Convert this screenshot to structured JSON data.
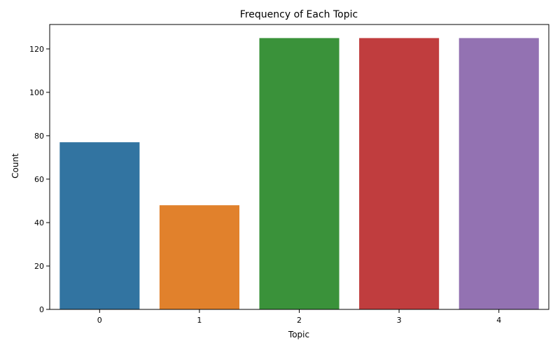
{
  "chart_data": {
    "type": "bar",
    "title": "Frequency of Each Topic",
    "xlabel": "Topic",
    "ylabel": "Count",
    "categories": [
      "0",
      "1",
      "2",
      "3",
      "4"
    ],
    "values": [
      77,
      48,
      125,
      125,
      125
    ],
    "colors": [
      "#3274a1",
      "#e1812c",
      "#3a923a",
      "#c03d3e",
      "#9372b2"
    ],
    "ylim": [
      0,
      131.25
    ],
    "yticks": [
      0,
      20,
      40,
      60,
      80,
      100,
      120
    ],
    "grid": false,
    "legend": "none"
  }
}
